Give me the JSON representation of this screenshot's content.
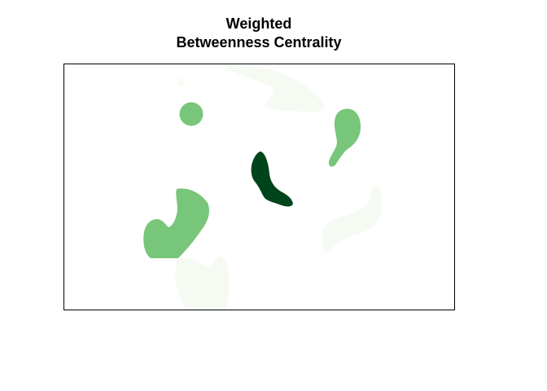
{
  "title": {
    "line1": "Weighted",
    "line2": "Betweenness Centrality"
  },
  "map": {
    "palette": {
      "low": "#f5fbf3",
      "faint": "#f7fcf5",
      "medium": "#78c679",
      "high": "#00441b"
    },
    "patches": [
      {
        "name": "patch-top-faint",
        "level": "low"
      },
      {
        "name": "patch-top-left-speck",
        "level": "faint"
      },
      {
        "name": "patch-right-faint",
        "level": "low"
      },
      {
        "name": "patch-bottom-faint",
        "level": "low"
      },
      {
        "name": "patch-small-circle",
        "level": "medium"
      },
      {
        "name": "patch-right-drop",
        "level": "medium"
      },
      {
        "name": "patch-left-crescent",
        "level": "medium"
      },
      {
        "name": "patch-center-dark",
        "level": "high"
      }
    ]
  }
}
